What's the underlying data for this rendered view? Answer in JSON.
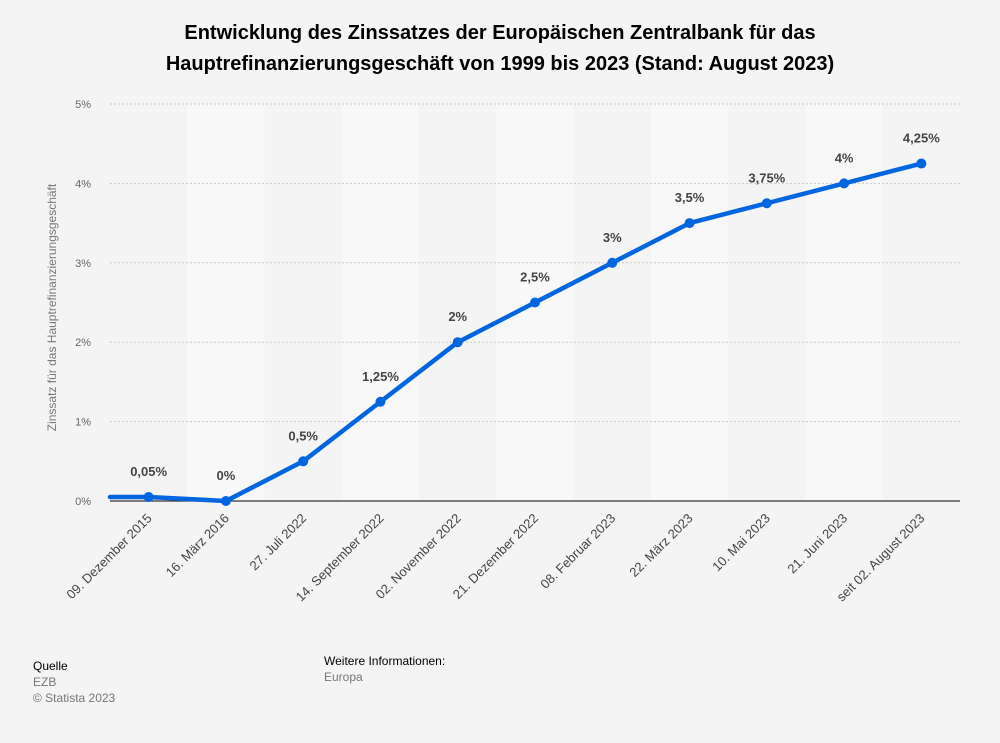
{
  "title_line1": "Entwicklung des Zinssatzes der Europäischen Zentralbank für das",
  "title_line2": "Hauptrefinanzierungsgeschäft von 1999 bis 2023 (Stand: August 2023)",
  "footer": {
    "source_heading": "Quelle",
    "source": "EZB",
    "copyright": "© Statista 2023",
    "info_heading": "Weitere Informationen:",
    "info": "Europa"
  },
  "chart_data": {
    "type": "line",
    "title": "Entwicklung des Zinssatzes der Europäischen Zentralbank für das Hauptrefinanzierungsgeschäft von 1999 bis 2023 (Stand: August 2023)",
    "xlabel": "",
    "ylabel": "Zinssatz für das Hauptrefinanzierungsgeschäft",
    "categories": [
      "09. Dezember 2015",
      "16. März 2016",
      "27. Juli 2022",
      "14. September 2022",
      "02. November 2022",
      "21. Dezember 2022",
      "08. Februar 2023",
      "22. März 2023",
      "10. Mai 2023",
      "21. Juni 2023",
      "seit 02. August 2023"
    ],
    "values": [
      0.05,
      0,
      0.5,
      1.25,
      2,
      2.5,
      3,
      3.5,
      3.75,
      4,
      4.25
    ],
    "data_labels": [
      "0,05%",
      "0%",
      "0,5%",
      "1,25%",
      "2%",
      "2,5%",
      "3%",
      "3,5%",
      "3,75%",
      "4%",
      "4,25%"
    ],
    "yticks": [
      0,
      1,
      2,
      3,
      4,
      5
    ],
    "ytick_labels": [
      "0%",
      "1%",
      "2%",
      "3%",
      "4%",
      "5%"
    ],
    "ylim": [
      0,
      5
    ],
    "grid": true,
    "legend": "none",
    "line_color": "#0066e0",
    "band_color": "#f8f8f8"
  }
}
